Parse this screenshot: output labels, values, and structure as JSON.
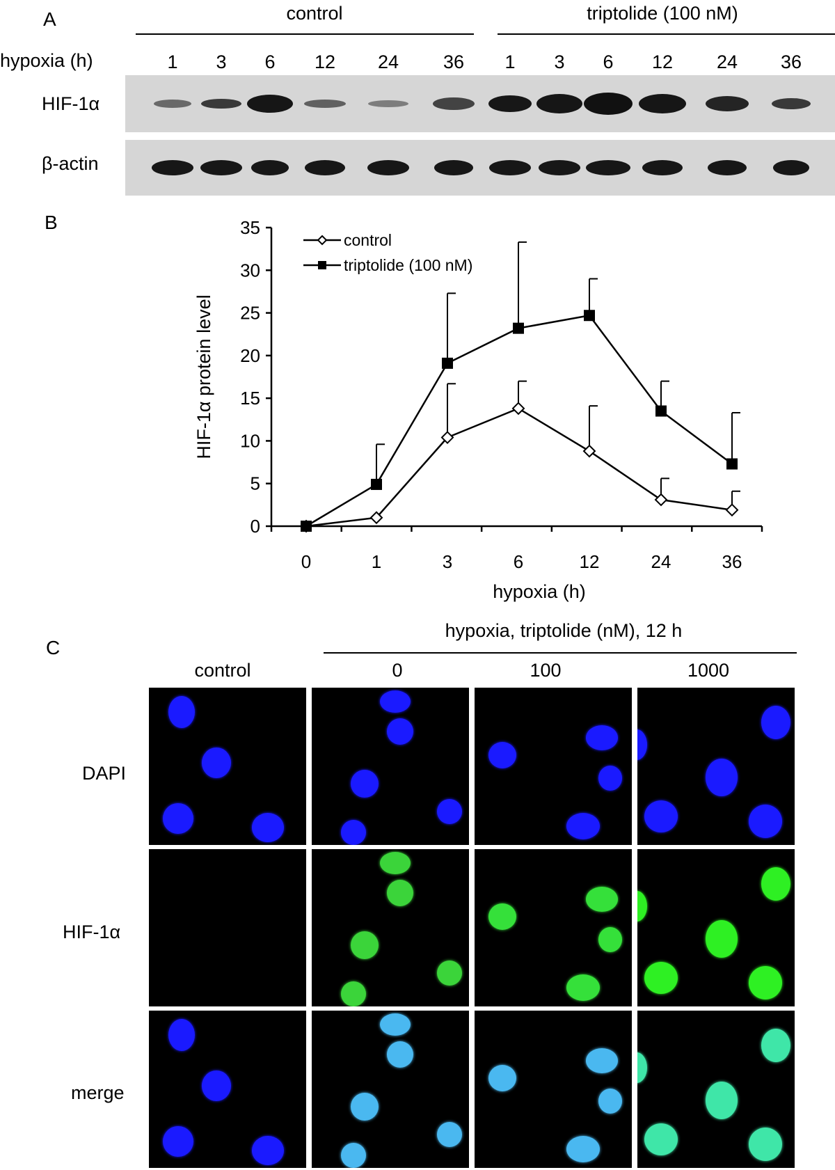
{
  "panelA": {
    "letter": "A",
    "group_control": "control",
    "group_triptolide": "triptolide (100 nM)",
    "row_label": "hypoxia (h)",
    "lanes": [
      "1",
      "3",
      "6",
      "12",
      "24",
      "36",
      "1",
      "3",
      "6",
      "12",
      "24",
      "36"
    ],
    "blot_hif": "HIF-1α",
    "blot_actin": "β-actin"
  },
  "panelB": {
    "letter": "B"
  },
  "chart_data": {
    "type": "line",
    "title": "",
    "xlabel": "hypoxia (h)",
    "ylabel": "HIF-1α protein level",
    "categories": [
      "0",
      "1",
      "3",
      "6",
      "12",
      "24",
      "36"
    ],
    "ylim": [
      0,
      35
    ],
    "yticks": [
      0,
      5,
      10,
      15,
      20,
      25,
      30,
      35
    ],
    "legend_position": "top-left",
    "grid": false,
    "series": [
      {
        "name": "control",
        "marker": "open-diamond",
        "values": [
          0,
          1.0,
          10.4,
          13.8,
          8.8,
          3.1,
          1.9
        ],
        "errors": [
          0,
          0,
          6.3,
          3.2,
          5.3,
          2.5,
          2.2
        ]
      },
      {
        "name": "triptolide (100 nM)",
        "marker": "filled-square",
        "values": [
          0,
          4.9,
          19.1,
          23.2,
          24.7,
          13.5,
          7.3
        ],
        "errors": [
          0,
          4.7,
          8.2,
          10.1,
          4.3,
          3.5,
          6.0
        ]
      }
    ]
  },
  "panelC": {
    "letter": "C",
    "header": "hypoxia, triptolide (nM), 12 h",
    "columns": [
      "control",
      "0",
      "100",
      "1000"
    ],
    "rows": [
      "DAPI",
      "HIF-1α",
      "merge"
    ]
  }
}
